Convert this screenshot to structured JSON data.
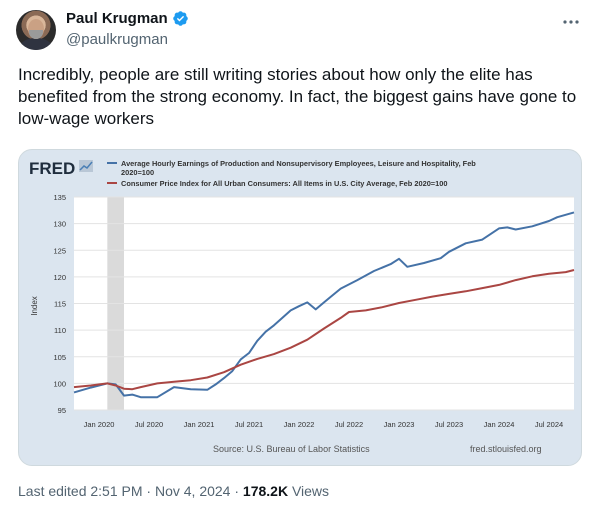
{
  "author": {
    "name": "Paul Krugman",
    "handle": "@paulkrugman"
  },
  "tweet": {
    "text": "Incredibly, people are still writing stories about how only the elite has benefited from the strong economy. In fact, the biggest gains have gone to low-wage workers"
  },
  "footer": {
    "edited": "Last edited 2:51 PM · Nov 4, 2024 · ",
    "views_count": "178.2K",
    "views_label": " Views"
  },
  "colors": {
    "series1": "#4572a7",
    "series2": "#aa4643",
    "card_bg": "#dbe5ef",
    "recession": "#dadada"
  },
  "icons": {
    "verified": "verified-badge-icon",
    "more": "more-options-icon"
  },
  "chart_data": {
    "type": "line",
    "logo": "FRED",
    "ylabel": "Index",
    "ylim": [
      95,
      135
    ],
    "yticks": [
      95,
      100,
      105,
      110,
      115,
      120,
      125,
      130,
      135
    ],
    "xlim": [
      "2019-10",
      "2024-10"
    ],
    "xticks": [
      {
        "date": "2020-01",
        "label": "Jan 2020"
      },
      {
        "date": "2020-07",
        "label": "Jul 2020"
      },
      {
        "date": "2021-01",
        "label": "Jan 2021"
      },
      {
        "date": "2021-07",
        "label": "Jul 2021"
      },
      {
        "date": "2022-01",
        "label": "Jan 2022"
      },
      {
        "date": "2022-07",
        "label": "Jul 2022"
      },
      {
        "date": "2023-01",
        "label": "Jan 2023"
      },
      {
        "date": "2023-07",
        "label": "Jul 2023"
      },
      {
        "date": "2024-01",
        "label": "Jan 2024"
      },
      {
        "date": "2024-07",
        "label": "Jul 2024"
      }
    ],
    "recession": [
      "2020-02",
      "2020-04"
    ],
    "series": [
      {
        "name_line1": "Average Hourly Earnings of Production and Nonsupervisory Employees, Leisure and Hospitality, Feb",
        "name_line2": "2020=100",
        "color": "#4572a7",
        "points": [
          [
            "2019-10",
            98.3
          ],
          [
            "2019-12",
            99.2
          ],
          [
            "2020-02",
            100.0
          ],
          [
            "2020-03",
            99.8
          ],
          [
            "2020-04",
            97.7
          ],
          [
            "2020-05",
            97.9
          ],
          [
            "2020-06",
            97.4
          ],
          [
            "2020-08",
            97.4
          ],
          [
            "2020-10",
            99.3
          ],
          [
            "2020-12",
            98.9
          ],
          [
            "2021-02",
            98.8
          ],
          [
            "2021-03",
            99.8
          ],
          [
            "2021-04",
            101.0
          ],
          [
            "2021-05",
            102.3
          ],
          [
            "2021-06",
            104.5
          ],
          [
            "2021-07",
            105.7
          ],
          [
            "2021-08",
            108.0
          ],
          [
            "2021-09",
            109.7
          ],
          [
            "2021-10",
            110.9
          ],
          [
            "2021-11",
            112.3
          ],
          [
            "2021-12",
            113.7
          ],
          [
            "2022-01",
            114.5
          ],
          [
            "2022-02",
            115.2
          ],
          [
            "2022-03",
            113.9
          ],
          [
            "2022-04",
            115.2
          ],
          [
            "2022-05",
            116.5
          ],
          [
            "2022-06",
            117.8
          ],
          [
            "2022-08",
            119.4
          ],
          [
            "2022-10",
            121.1
          ],
          [
            "2022-12",
            122.4
          ],
          [
            "2023-01",
            123.4
          ],
          [
            "2023-02",
            121.9
          ],
          [
            "2023-04",
            122.6
          ],
          [
            "2023-06",
            123.5
          ],
          [
            "2023-07",
            124.7
          ],
          [
            "2023-09",
            126.3
          ],
          [
            "2023-11",
            127.0
          ],
          [
            "2024-01",
            129.1
          ],
          [
            "2024-02",
            129.3
          ],
          [
            "2024-03",
            128.9
          ],
          [
            "2024-05",
            129.5
          ],
          [
            "2024-07",
            130.5
          ],
          [
            "2024-08",
            131.2
          ],
          [
            "2024-10",
            132.1
          ]
        ]
      },
      {
        "name_line1": "Consumer Price Index for All Urban Consumers: All Items in U.S. City Average, Feb 2020=100",
        "name_line2": "",
        "color": "#aa4643",
        "points": [
          [
            "2019-10",
            99.3
          ],
          [
            "2019-12",
            99.6
          ],
          [
            "2020-02",
            100.0
          ],
          [
            "2020-03",
            99.6
          ],
          [
            "2020-04",
            99.0
          ],
          [
            "2020-05",
            98.9
          ],
          [
            "2020-06",
            99.3
          ],
          [
            "2020-08",
            100.0
          ],
          [
            "2020-10",
            100.3
          ],
          [
            "2020-12",
            100.6
          ],
          [
            "2021-02",
            101.1
          ],
          [
            "2021-04",
            102.1
          ],
          [
            "2021-06",
            103.5
          ],
          [
            "2021-08",
            104.6
          ],
          [
            "2021-10",
            105.5
          ],
          [
            "2021-12",
            106.7
          ],
          [
            "2022-02",
            108.2
          ],
          [
            "2022-04",
            110.3
          ],
          [
            "2022-06",
            112.3
          ],
          [
            "2022-07",
            113.4
          ],
          [
            "2022-09",
            113.7
          ],
          [
            "2022-11",
            114.3
          ],
          [
            "2023-01",
            115.1
          ],
          [
            "2023-03",
            115.7
          ],
          [
            "2023-05",
            116.3
          ],
          [
            "2023-07",
            116.8
          ],
          [
            "2023-09",
            117.3
          ],
          [
            "2023-11",
            117.9
          ],
          [
            "2024-01",
            118.5
          ],
          [
            "2024-03",
            119.4
          ],
          [
            "2024-05",
            120.1
          ],
          [
            "2024-07",
            120.6
          ],
          [
            "2024-09",
            120.9
          ],
          [
            "2024-10",
            121.3
          ]
        ]
      }
    ],
    "source": "Source: U.S. Bureau of Labor Statistics",
    "site": "fred.stlouisfed.org"
  }
}
